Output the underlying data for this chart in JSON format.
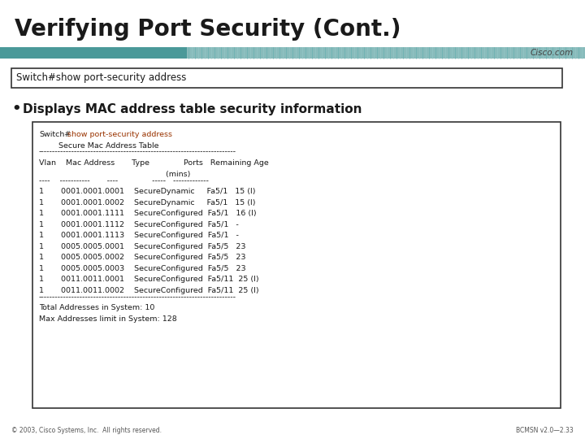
{
  "title": "Verifying Port Security (Cont.)",
  "title_fontsize": 20,
  "title_color": "#1a1a1a",
  "bg_color": "#ffffff",
  "teal_solid": "#4a9999",
  "teal_stripe": "#7bbfbf",
  "command_box_text": "Switch#show port-security address",
  "bullet_text": "Displays MAC address table security information",
  "switch_prompt": "Switch#",
  "switch_cmd": "show port-security address",
  "cmd_color_red": "#993300",
  "line2": "        Secure Mac Address Table",
  "sep": "------------------------------------------------------------------------",
  "header1": "Vlan    Mac Address       Type              Ports   Remaining Age",
  "header2": "                                                    (mins)",
  "dashes": "----    -----------       ----              -----   -------------",
  "data_rows": [
    "1       0001.0001.0001    SecureDynamic     Fa5/1   15 (I)",
    "1       0001.0001.0002    SecureDynamic     Fa5/1   15 (I)",
    "1       0001.0001.1111    SecureConfigured  Fa5/1   16 (I)",
    "1       0001.0001.1112    SecureConfigured  Fa5/1   -",
    "1       0001.0001.1113    SecureConfigured  Fa5/1   -",
    "1       0005.0005.0001    SecureConfigured  Fa5/5   23",
    "1       0005.0005.0002    SecureConfigured  Fa5/5   23",
    "1       0005.0005.0003    SecureConfigured  Fa5/5   23",
    "1       0011.0011.0001    SecureConfigured  Fa5/11  25 (I)",
    "1       0011.0011.0002    SecureConfigured  Fa5/11  25 (I)"
  ],
  "total_line": "Total Addresses in System: 10",
  "max_line": "Max Addresses limit in System: 128",
  "footer_left": "© 2003, Cisco Systems, Inc.  All rights reserved.",
  "footer_right": "BCMSN v2.0—2.33",
  "cisco_com": "Cisco.com"
}
